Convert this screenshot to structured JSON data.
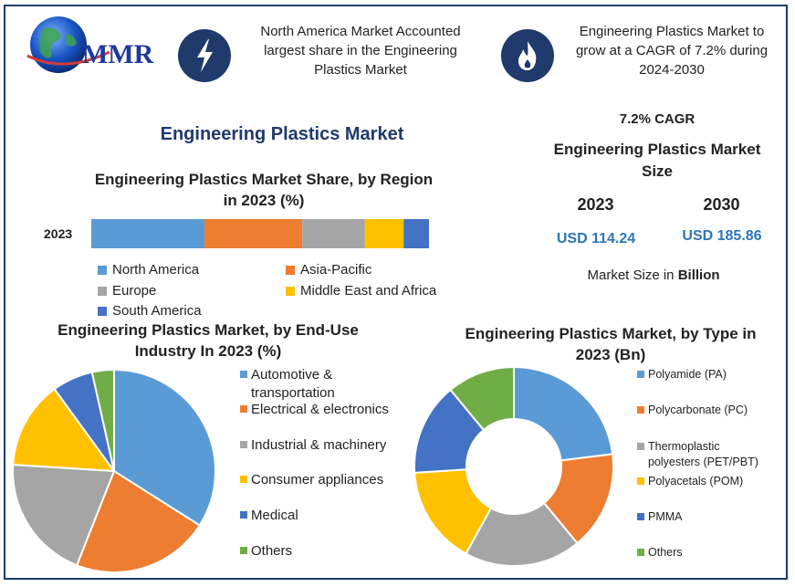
{
  "logo": {
    "text": "MMR"
  },
  "header": {
    "box1": "North America Market Accounted largest share in the Engineering Plastics Market",
    "box2": "Engineering Plastics Market to grow at a CAGR of 7.2% during 2024-2030",
    "icon1": "lightning-icon",
    "icon2": "flame-icon"
  },
  "main_title": "Engineering Plastics Market",
  "colors": {
    "navy": "#1f3a6b",
    "blue": "#5b9bd5",
    "orange": "#ed7d31",
    "gray": "#a5a5a5",
    "yellow": "#ffc000",
    "darkblue": "#4472c4",
    "green": "#70ad47",
    "value_blue": "#2e75b6"
  },
  "market_size": {
    "cagr": "7.2% CAGR",
    "title": "Engineering Plastics Market Size",
    "year1": "2023",
    "year2": "2030",
    "value1": "USD 114.24",
    "value2": "USD 185.86",
    "unit_prefix": "Market Size in ",
    "unit_bold": "Billion"
  },
  "chart_data": [
    {
      "type": "bar",
      "orientation": "horizontal-stacked",
      "title": "Engineering Plastics Market Share, by Region in 2023 (%)",
      "categories": [
        "2023"
      ],
      "series": [
        {
          "name": "North America",
          "values": [
            33.5
          ]
        },
        {
          "name": "Asia-Pacific",
          "values": [
            29
          ]
        },
        {
          "name": "Europe",
          "values": [
            18.5
          ]
        },
        {
          "name": "Middle East and Africa",
          "values": [
            11.5
          ]
        },
        {
          "name": "South America",
          "values": [
            7.5
          ]
        }
      ],
      "legend": "bottom"
    },
    {
      "type": "pie",
      "title": "Engineering Plastics Market, by End-Use Industry In 2023 (%)",
      "labels": [
        "Automotive & transportation",
        "Electrical & electronics",
        "Industrial & machinery",
        "Consumer appliances",
        "Medical",
        "Others"
      ],
      "values": [
        34,
        22,
        20,
        14,
        6.5,
        3.5
      ],
      "legend": "right"
    },
    {
      "type": "pie",
      "variant": "donut",
      "title": "Engineering Plastics Market, by Type in 2023 (Bn)",
      "labels": [
        "Polyamide (PA)",
        "Polycarbonate (PC)",
        "Thermoplastic polyesters (PET/PBT)",
        "Polyacetals (POM)",
        "PMMA",
        "Others"
      ],
      "values": [
        23,
        16,
        19,
        16,
        15,
        11
      ],
      "legend": "right"
    }
  ]
}
